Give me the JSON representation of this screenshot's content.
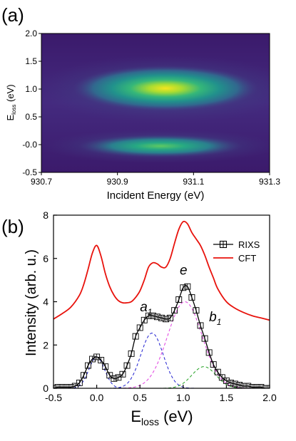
{
  "panel_a": {
    "label": "(a)",
    "chart_data": {
      "type": "heatmap",
      "xlabel": "Incident Energy (eV)",
      "ylabel_main": "E",
      "ylabel_sub": "loss",
      "ylabel_unit": " (eV)",
      "xlim": [
        930.7,
        931.3
      ],
      "ylim": [
        -0.5,
        2.0
      ],
      "x_ticks": [
        "930.7",
        "930.9",
        "931.1",
        "931.3"
      ],
      "x_tick_values": [
        930.7,
        930.9,
        931.1,
        931.3
      ],
      "y_ticks": [
        "-0.5",
        "-0.0",
        "0.5",
        "1.0",
        "1.5",
        "2.0"
      ],
      "y_tick_values": [
        -0.5,
        0.0,
        0.5,
        1.0,
        1.5,
        2.0
      ],
      "colormap": "viridis",
      "features": [
        {
          "x": 931.0,
          "y": 1.05,
          "intensity": 1.0
        },
        {
          "x": 931.0,
          "y": 0.0,
          "intensity": 0.55
        }
      ]
    }
  },
  "panel_b": {
    "label": "(b)",
    "chart_data": {
      "type": "line",
      "xlabel_main": "E",
      "xlabel_sub": "loss",
      "xlabel_unit": " (eV)",
      "ylabel": "Intensity (arb. u.)",
      "xlim": [
        -0.5,
        2.0
      ],
      "ylim": [
        0,
        8
      ],
      "x_ticks": [
        "-0.5",
        "0.0",
        "0.5",
        "1.0",
        "1.5",
        "2.0"
      ],
      "x_tick_values": [
        -0.5,
        0.0,
        0.5,
        1.0,
        1.5,
        2.0
      ],
      "y_ticks": [
        "0",
        "2",
        "4",
        "6",
        "8"
      ],
      "y_tick_values": [
        0,
        2,
        4,
        6,
        8
      ],
      "legend_position": "top-right",
      "series": [
        {
          "name": "RIXS",
          "color": "#000000",
          "marker": "square",
          "x": [
            -0.5,
            -0.45,
            -0.4,
            -0.35,
            -0.3,
            -0.25,
            -0.2,
            -0.15,
            -0.1,
            -0.05,
            0.0,
            0.05,
            0.1,
            0.15,
            0.2,
            0.25,
            0.3,
            0.35,
            0.4,
            0.45,
            0.5,
            0.55,
            0.6,
            0.65,
            0.7,
            0.75,
            0.8,
            0.85,
            0.9,
            0.95,
            1.0,
            1.05,
            1.1,
            1.15,
            1.2,
            1.25,
            1.3,
            1.35,
            1.4,
            1.45,
            1.5,
            1.55,
            1.6,
            1.65,
            1.7,
            1.75,
            1.8,
            1.85,
            1.9,
            1.95,
            2.0
          ],
          "y": [
            0.0,
            0.05,
            0.05,
            0.05,
            0.05,
            0.1,
            0.25,
            0.6,
            1.05,
            1.35,
            1.45,
            1.3,
            1.0,
            0.6,
            0.45,
            0.5,
            0.65,
            1.05,
            1.6,
            2.4,
            2.8,
            3.15,
            3.35,
            3.35,
            3.3,
            3.25,
            3.2,
            3.25,
            3.6,
            4.1,
            4.65,
            4.7,
            4.2,
            3.6,
            2.9,
            2.3,
            1.65,
            1.1,
            0.75,
            0.5,
            0.35,
            0.25,
            0.2,
            0.15,
            0.1,
            0.1,
            0.05,
            0.05,
            0.05,
            0.0,
            0.0
          ]
        },
        {
          "name": "CFT",
          "color": "#e8120c",
          "x": [
            -0.5,
            -0.4,
            -0.3,
            -0.2,
            -0.15,
            -0.1,
            -0.05,
            0.0,
            0.05,
            0.1,
            0.15,
            0.2,
            0.25,
            0.3,
            0.35,
            0.4,
            0.45,
            0.5,
            0.55,
            0.6,
            0.65,
            0.7,
            0.75,
            0.8,
            0.85,
            0.9,
            0.95,
            1.0,
            1.05,
            1.1,
            1.15,
            1.2,
            1.25,
            1.3,
            1.35,
            1.4,
            1.5,
            1.6,
            1.7,
            1.8,
            1.9,
            2.0
          ],
          "y": [
            3.2,
            3.45,
            3.75,
            4.3,
            4.8,
            5.5,
            6.25,
            6.6,
            6.1,
            5.3,
            4.7,
            4.3,
            4.05,
            3.95,
            3.95,
            4.0,
            4.2,
            4.5,
            5.0,
            5.6,
            5.8,
            5.75,
            5.6,
            5.6,
            6.0,
            6.7,
            7.35,
            7.7,
            7.6,
            7.2,
            6.9,
            6.6,
            6.15,
            5.6,
            5.1,
            4.6,
            4.0,
            3.7,
            3.5,
            3.35,
            3.25,
            3.15
          ]
        },
        {
          "name": "a1 component",
          "color": "#2020d0",
          "dashed": true,
          "peak": {
            "center": 0.64,
            "height": 2.55,
            "width": 0.13
          }
        },
        {
          "name": "e component",
          "color": "#e040e0",
          "dashed": true,
          "peak": {
            "center": 1.02,
            "height": 4.0,
            "width": 0.2
          }
        },
        {
          "name": "b1 component",
          "color": "#20a020",
          "dashed": true,
          "peak": {
            "center": 1.24,
            "height": 1.0,
            "width": 0.14
          }
        },
        {
          "name": "elastic component",
          "color": "#2020d0",
          "dashed": true,
          "peak": {
            "center": 0.0,
            "height": 1.45,
            "width": 0.09
          }
        }
      ],
      "annotations": [
        {
          "id": "a1",
          "main": "a",
          "sub": "1",
          "x": 0.5,
          "y": 3.55
        },
        {
          "id": "e",
          "main": "e",
          "sub": "",
          "x": 0.96,
          "y": 5.25
        },
        {
          "id": "b1",
          "main": "b",
          "sub": "1",
          "x": 1.3,
          "y": 3.1
        }
      ]
    }
  }
}
